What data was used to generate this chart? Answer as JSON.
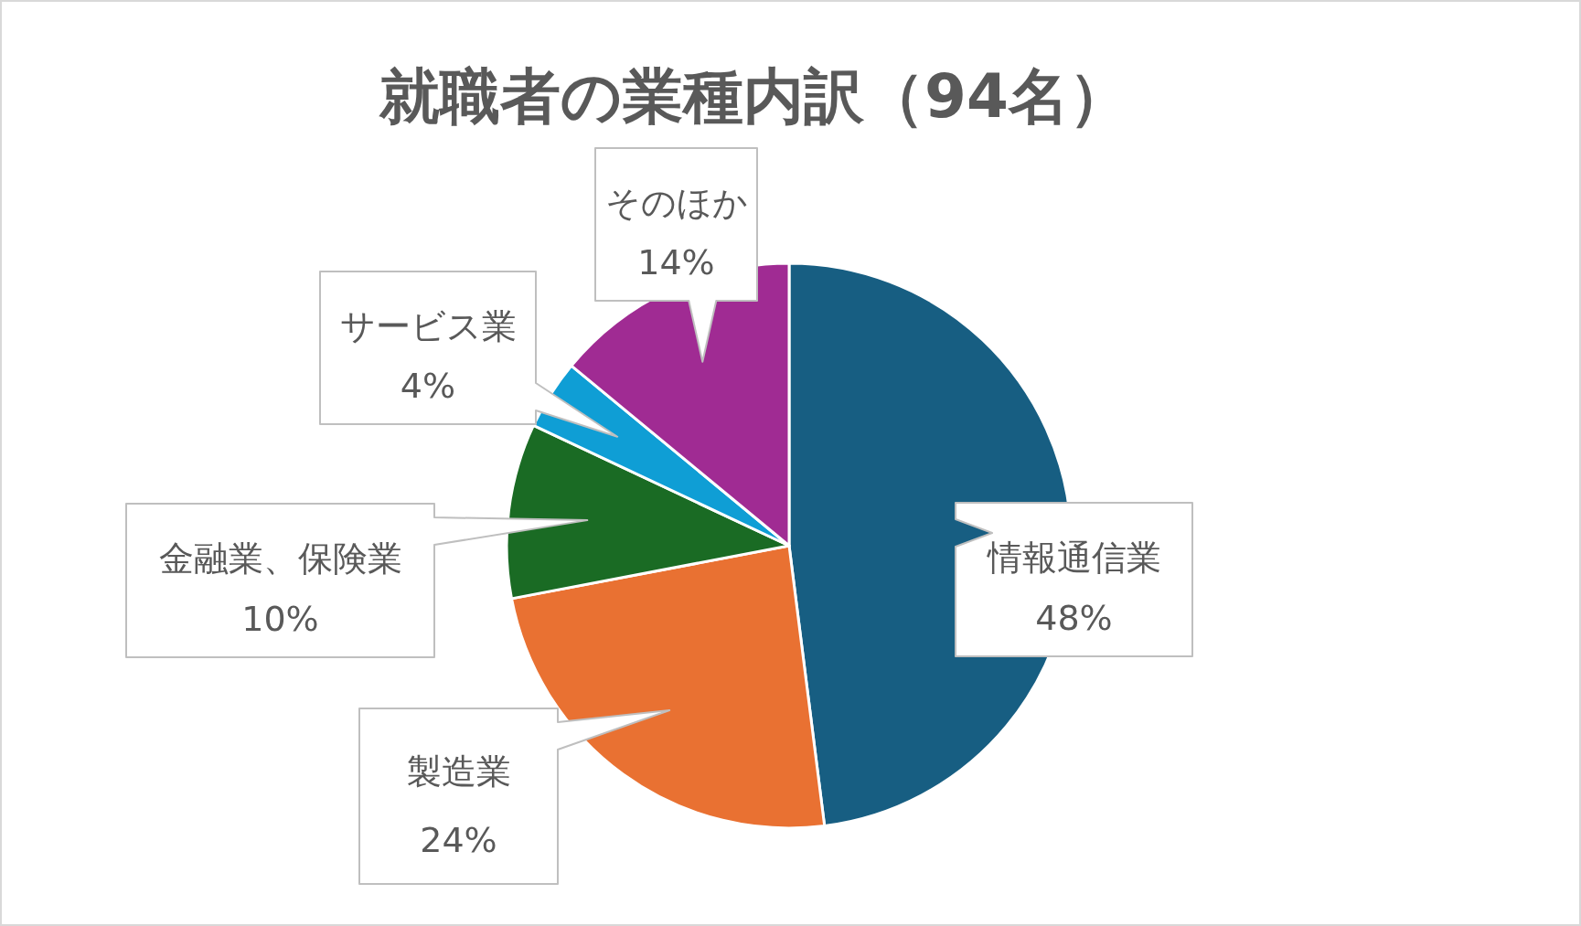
{
  "chart_data": {
    "type": "pie",
    "title": "就職者の業種内訳（94名）",
    "categories": [
      "情報通信業",
      "製造業",
      "金融業、保険業",
      "サービス業",
      "そのほか"
    ],
    "values": [
      48,
      24,
      10,
      4,
      14
    ],
    "colors": [
      "#175e82",
      "#e97132",
      "#1a6b24",
      "#0f9ed5",
      "#a02b93"
    ],
    "value_labels": [
      "48%",
      "24%",
      "10%",
      "4%",
      "14%"
    ]
  }
}
